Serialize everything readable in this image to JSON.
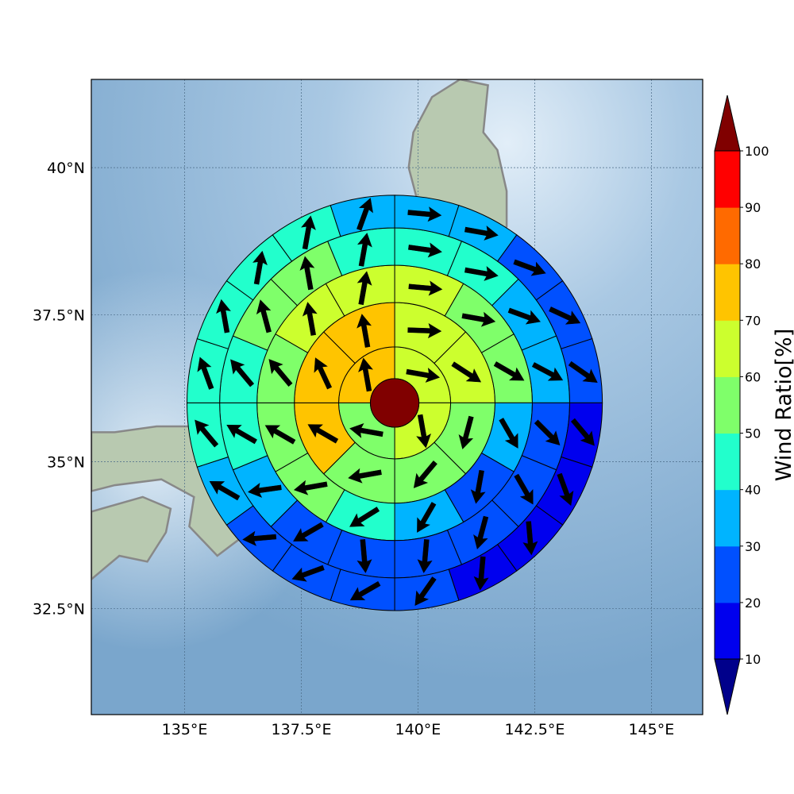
{
  "map": {
    "lon_range": [
      133.0,
      146.1
    ],
    "lat_range": [
      30.7,
      41.5
    ],
    "center": {
      "lon": 139.5,
      "lat": 36.0
    },
    "lon_ticks": [
      {
        "value": 135.0,
        "label": "135°E"
      },
      {
        "value": 137.5,
        "label": "137.5°E"
      },
      {
        "value": 140.0,
        "label": "140°E"
      },
      {
        "value": 142.5,
        "label": "142.5°E"
      },
      {
        "value": 145.0,
        "label": "145°E"
      }
    ],
    "lat_ticks": [
      {
        "value": 40.0,
        "label": "40°N"
      },
      {
        "value": 37.5,
        "label": "37.5°N"
      },
      {
        "value": 35.0,
        "label": "35°N"
      },
      {
        "value": 32.5,
        "label": "32.5°N"
      }
    ],
    "gridlines": true,
    "coastline_color": "#888888",
    "ocean_color": "#8fb5d6"
  },
  "rings": [
    {
      "name": "ring-1",
      "inner_deg": 0.52,
      "outer_deg": 1.2,
      "sectors": 4,
      "values": [
        65,
        65,
        55,
        70
      ],
      "arrows": [
        100,
        170,
        280,
        350
      ]
    },
    {
      "name": "ring-2",
      "inner_deg": 1.2,
      "outer_deg": 2.15,
      "sectors": 8,
      "values": [
        65,
        60,
        55,
        50,
        55,
        70,
        70,
        70
      ],
      "arrows": [
        92,
        123,
        195,
        220,
        260,
        300,
        335,
        350
      ]
    },
    {
      "name": "ring-3",
      "inner_deg": 2.15,
      "outer_deg": 2.95,
      "sectors": 12,
      "values": [
        65,
        55,
        55,
        35,
        25,
        35,
        45,
        50,
        55,
        50,
        60,
        65
      ],
      "arrows": [
        95,
        100,
        120,
        150,
        190,
        210,
        238,
        260,
        300,
        320,
        350,
        10
      ]
    },
    {
      "name": "ring-4",
      "inner_deg": 2.95,
      "outer_deg": 3.75,
      "sectors": 16,
      "values": [
        45,
        45,
        35,
        35,
        25,
        25,
        25,
        25,
        25,
        25,
        35,
        45,
        45,
        55,
        55,
        45
      ],
      "arrows": [
        98,
        100,
        110,
        118,
        135,
        150,
        195,
        185,
        175,
        240,
        262,
        300,
        320,
        345,
        350,
        10
      ]
    },
    {
      "name": "ring-5",
      "inner_deg": 3.75,
      "outer_deg": 4.45,
      "sectors": 20,
      "values": [
        35,
        35,
        25,
        25,
        25,
        15,
        15,
        15,
        15,
        25,
        25,
        25,
        25,
        35,
        45,
        45,
        45,
        45,
        45,
        35
      ],
      "arrows": [
        95,
        100,
        110,
        115,
        125,
        140,
        160,
        175,
        185,
        215,
        240,
        250,
        265,
        300,
        320,
        340,
        350,
        10,
        10,
        20
      ]
    }
  ],
  "center_disc": {
    "radius_deg": 0.52,
    "value": 100
  },
  "colorbar": {
    "label": "Wind Ratio[%]",
    "ticks": [
      "10",
      "20",
      "30",
      "40",
      "50",
      "60",
      "70",
      "80",
      "90",
      "100"
    ],
    "bins": [
      {
        "from": 10,
        "to": 20,
        "color": "#0000ee"
      },
      {
        "from": 20,
        "to": 30,
        "color": "#0050ff"
      },
      {
        "from": 30,
        "to": 40,
        "color": "#00b4ff"
      },
      {
        "from": 40,
        "to": 50,
        "color": "#22ffcc"
      },
      {
        "from": 50,
        "to": 60,
        "color": "#7fff6a"
      },
      {
        "from": 60,
        "to": 70,
        "color": "#ccff2e"
      },
      {
        "from": 70,
        "to": 80,
        "color": "#ffc400"
      },
      {
        "from": 80,
        "to": 90,
        "color": "#ff6a00"
      },
      {
        "from": 90,
        "to": 100,
        "color": "#ff0000"
      }
    ],
    "under_color": "#00008b",
    "over_color": "#800000"
  }
}
